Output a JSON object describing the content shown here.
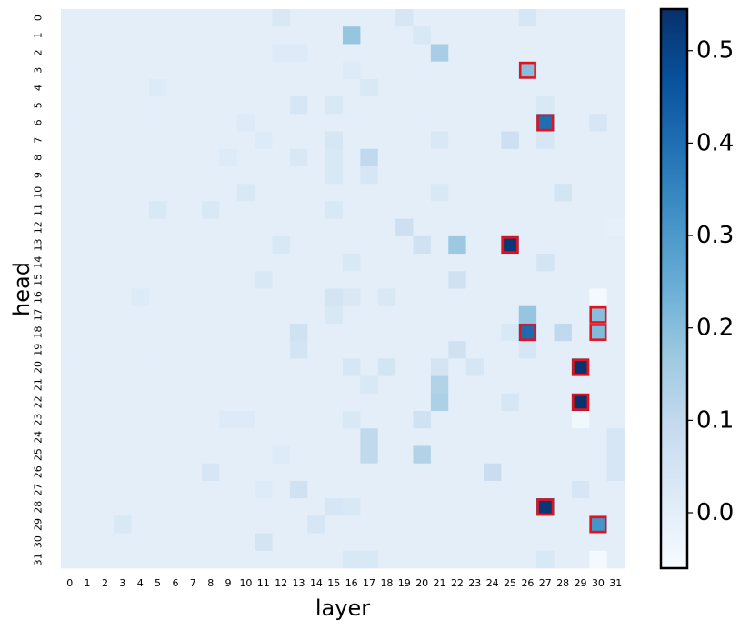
{
  "chart_data": {
    "type": "heatmap",
    "xlabel": "layer",
    "ylabel": "head",
    "x": [
      "0",
      "1",
      "2",
      "3",
      "4",
      "5",
      "6",
      "7",
      "8",
      "9",
      "10",
      "11",
      "12",
      "13",
      "14",
      "15",
      "16",
      "17",
      "18",
      "19",
      "20",
      "21",
      "22",
      "23",
      "24",
      "25",
      "26",
      "27",
      "28",
      "29",
      "30",
      "31"
    ],
    "y": [
      "0",
      "1",
      "2",
      "3",
      "4",
      "5",
      "6",
      "7",
      "8",
      "9",
      "10",
      "11",
      "12",
      "13",
      "14",
      "15",
      "16",
      "17",
      "18",
      "19",
      "20",
      "21",
      "22",
      "23",
      "24",
      "25",
      "26",
      "27",
      "28",
      "29",
      "30",
      "31"
    ],
    "vmin": -0.06,
    "vmax": 0.545,
    "colormap": "Blues",
    "grid": false,
    "colorbar": {
      "ticks": [
        "0.0",
        "0.1",
        "0.2",
        "0.3",
        "0.4",
        "0.5"
      ],
      "tick_values": [
        0.0,
        0.1,
        0.2,
        0.3,
        0.4,
        0.5
      ],
      "position": "right"
    },
    "background_value": 0.0,
    "cells": [
      {
        "head": 0,
        "layer": 12,
        "value": 0.03
      },
      {
        "head": 0,
        "layer": 19,
        "value": 0.04
      },
      {
        "head": 0,
        "layer": 26,
        "value": 0.04
      },
      {
        "head": 1,
        "layer": 16,
        "value": 0.18
      },
      {
        "head": 1,
        "layer": 20,
        "value": 0.03
      },
      {
        "head": 2,
        "layer": 21,
        "value": 0.15
      },
      {
        "head": 2,
        "layer": 12,
        "value": 0.02
      },
      {
        "head": 2,
        "layer": 13,
        "value": 0.02
      },
      {
        "head": 3,
        "layer": 26,
        "value": 0.2,
        "highlight": true
      },
      {
        "head": 3,
        "layer": 16,
        "value": 0.02
      },
      {
        "head": 4,
        "layer": 17,
        "value": 0.03
      },
      {
        "head": 4,
        "layer": 5,
        "value": 0.02
      },
      {
        "head": 5,
        "layer": 13,
        "value": 0.04
      },
      {
        "head": 5,
        "layer": 15,
        "value": 0.03
      },
      {
        "head": 5,
        "layer": 27,
        "value": 0.03
      },
      {
        "head": 6,
        "layer": 27,
        "value": 0.4,
        "highlight": true
      },
      {
        "head": 6,
        "layer": 30,
        "value": 0.04
      },
      {
        "head": 6,
        "layer": 10,
        "value": 0.02
      },
      {
        "head": 7,
        "layer": 25,
        "value": 0.07
      },
      {
        "head": 7,
        "layer": 27,
        "value": 0.04
      },
      {
        "head": 7,
        "layer": 15,
        "value": 0.04
      },
      {
        "head": 7,
        "layer": 21,
        "value": 0.03
      },
      {
        "head": 7,
        "layer": 11,
        "value": 0.02
      },
      {
        "head": 8,
        "layer": 17,
        "value": 0.1
      },
      {
        "head": 8,
        "layer": 13,
        "value": 0.03
      },
      {
        "head": 8,
        "layer": 15,
        "value": 0.03
      },
      {
        "head": 8,
        "layer": 9,
        "value": 0.02
      },
      {
        "head": 9,
        "layer": 17,
        "value": 0.04
      },
      {
        "head": 9,
        "layer": 15,
        "value": 0.03
      },
      {
        "head": 10,
        "layer": 28,
        "value": 0.05
      },
      {
        "head": 10,
        "layer": 21,
        "value": 0.03
      },
      {
        "head": 10,
        "layer": 10,
        "value": 0.03
      },
      {
        "head": 11,
        "layer": 5,
        "value": 0.03
      },
      {
        "head": 11,
        "layer": 8,
        "value": 0.03
      },
      {
        "head": 11,
        "layer": 15,
        "value": 0.03
      },
      {
        "head": 12,
        "layer": 19,
        "value": 0.07
      },
      {
        "head": 12,
        "layer": 31,
        "value": -0.01
      },
      {
        "head": 13,
        "layer": 25,
        "value": 0.53,
        "highlight": true
      },
      {
        "head": 13,
        "layer": 22,
        "value": 0.17
      },
      {
        "head": 13,
        "layer": 20,
        "value": 0.06
      },
      {
        "head": 13,
        "layer": 12,
        "value": 0.03
      },
      {
        "head": 14,
        "layer": 27,
        "value": 0.05
      },
      {
        "head": 14,
        "layer": 16,
        "value": 0.03
      },
      {
        "head": 15,
        "layer": 22,
        "value": 0.06
      },
      {
        "head": 15,
        "layer": 11,
        "value": 0.03
      },
      {
        "head": 16,
        "layer": 30,
        "value": -0.05
      },
      {
        "head": 16,
        "layer": 15,
        "value": 0.05
      },
      {
        "head": 16,
        "layer": 16,
        "value": 0.03
      },
      {
        "head": 16,
        "layer": 18,
        "value": 0.03
      },
      {
        "head": 16,
        "layer": 4,
        "value": 0.02
      },
      {
        "head": 17,
        "layer": 30,
        "value": 0.2,
        "highlight": true
      },
      {
        "head": 17,
        "layer": 26,
        "value": 0.18
      },
      {
        "head": 17,
        "layer": 15,
        "value": 0.03
      },
      {
        "head": 18,
        "layer": 26,
        "value": 0.41,
        "highlight": true
      },
      {
        "head": 18,
        "layer": 30,
        "value": 0.21,
        "highlight": true
      },
      {
        "head": 18,
        "layer": 28,
        "value": 0.1
      },
      {
        "head": 18,
        "layer": 13,
        "value": 0.06
      },
      {
        "head": 18,
        "layer": 25,
        "value": 0.03
      },
      {
        "head": 19,
        "layer": 22,
        "value": 0.06
      },
      {
        "head": 19,
        "layer": 13,
        "value": 0.05
      },
      {
        "head": 19,
        "layer": 26,
        "value": 0.04
      },
      {
        "head": 20,
        "layer": 29,
        "value": 0.54,
        "highlight": true
      },
      {
        "head": 20,
        "layer": 18,
        "value": 0.05
      },
      {
        "head": 20,
        "layer": 21,
        "value": 0.05
      },
      {
        "head": 20,
        "layer": 23,
        "value": 0.04
      },
      {
        "head": 20,
        "layer": 16,
        "value": 0.04
      },
      {
        "head": 21,
        "layer": 21,
        "value": 0.13
      },
      {
        "head": 21,
        "layer": 17,
        "value": 0.03
      },
      {
        "head": 22,
        "layer": 29,
        "value": 0.54,
        "highlight": true
      },
      {
        "head": 22,
        "layer": 21,
        "value": 0.14
      },
      {
        "head": 22,
        "layer": 25,
        "value": 0.04
      },
      {
        "head": 23,
        "layer": 29,
        "value": -0.04
      },
      {
        "head": 23,
        "layer": 20,
        "value": 0.06
      },
      {
        "head": 23,
        "layer": 16,
        "value": 0.03
      },
      {
        "head": 23,
        "layer": 9,
        "value": 0.02
      },
      {
        "head": 23,
        "layer": 10,
        "value": 0.02
      },
      {
        "head": 24,
        "layer": 17,
        "value": 0.1
      },
      {
        "head": 24,
        "layer": 31,
        "value": 0.04
      },
      {
        "head": 25,
        "layer": 17,
        "value": 0.1
      },
      {
        "head": 25,
        "layer": 20,
        "value": 0.13
      },
      {
        "head": 25,
        "layer": 31,
        "value": 0.04
      },
      {
        "head": 25,
        "layer": 12,
        "value": 0.02
      },
      {
        "head": 26,
        "layer": 24,
        "value": 0.08
      },
      {
        "head": 26,
        "layer": 8,
        "value": 0.04
      },
      {
        "head": 26,
        "layer": 31,
        "value": 0.04
      },
      {
        "head": 27,
        "layer": 13,
        "value": 0.06
      },
      {
        "head": 27,
        "layer": 29,
        "value": 0.04
      },
      {
        "head": 27,
        "layer": 11,
        "value": 0.02
      },
      {
        "head": 28,
        "layer": 27,
        "value": 0.53,
        "highlight": true
      },
      {
        "head": 28,
        "layer": 15,
        "value": 0.04
      },
      {
        "head": 28,
        "layer": 16,
        "value": 0.03
      },
      {
        "head": 29,
        "layer": 30,
        "value": 0.31,
        "highlight": true
      },
      {
        "head": 29,
        "layer": 14,
        "value": 0.04
      },
      {
        "head": 29,
        "layer": 3,
        "value": 0.03
      },
      {
        "head": 30,
        "layer": 11,
        "value": 0.05
      },
      {
        "head": 31,
        "layer": 30,
        "value": -0.05
      },
      {
        "head": 31,
        "layer": 27,
        "value": 0.03
      },
      {
        "head": 31,
        "layer": 16,
        "value": 0.03
      },
      {
        "head": 31,
        "layer": 17,
        "value": 0.03
      }
    ]
  }
}
